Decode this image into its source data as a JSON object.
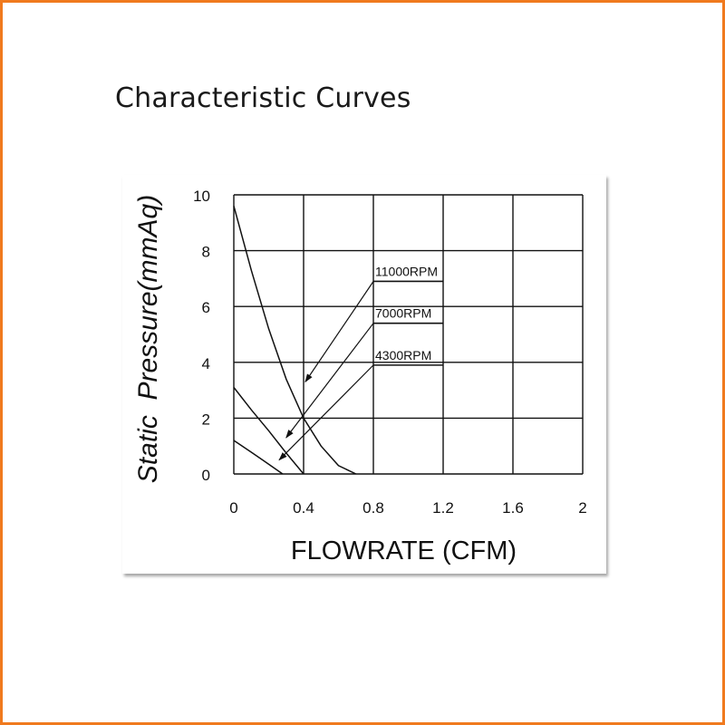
{
  "page": {
    "title": "Characteristic Curves",
    "border_color": "#f07a1e"
  },
  "chart_data": {
    "type": "line",
    "xlabel": "FLOWRATE (CFM)",
    "ylabel": "Static  Pressure(mmAq)",
    "xlim": [
      0,
      2
    ],
    "ylim": [
      0,
      10
    ],
    "x_ticks": [
      "0",
      "0.4",
      "0.8",
      "1.2",
      "1.6",
      "2"
    ],
    "y_ticks": [
      "0",
      "2",
      "4",
      "6",
      "8",
      "10"
    ],
    "grid": true,
    "series": [
      {
        "name": "11000RPM",
        "points": [
          [
            0,
            9.6
          ],
          [
            0.1,
            7.3
          ],
          [
            0.2,
            5.2
          ],
          [
            0.3,
            3.4
          ],
          [
            0.4,
            2.0
          ],
          [
            0.5,
            1.0
          ],
          [
            0.6,
            0.3
          ],
          [
            0.7,
            0
          ]
        ]
      },
      {
        "name": "7000RPM",
        "points": [
          [
            0,
            3.1
          ],
          [
            0.1,
            2.3
          ],
          [
            0.2,
            1.55
          ],
          [
            0.3,
            0.75
          ],
          [
            0.4,
            0
          ]
        ]
      },
      {
        "name": "4300RPM",
        "points": [
          [
            0,
            1.2
          ],
          [
            0.1,
            0.78
          ],
          [
            0.2,
            0.35
          ],
          [
            0.28,
            0
          ]
        ]
      }
    ],
    "annotations": [
      {
        "label": "11000RPM",
        "box_x": [
          0.8,
          1.2
        ],
        "box_y": 6.9,
        "pointer_to": [
          0.41,
          3.3
        ]
      },
      {
        "label": "7000RPM",
        "box_x": [
          0.8,
          1.2
        ],
        "box_y": 5.4,
        "pointer_to": [
          0.3,
          1.3
        ]
      },
      {
        "label": "4300RPM",
        "box_x": [
          0.8,
          1.2
        ],
        "box_y": 3.9,
        "pointer_to": [
          0.26,
          0.5
        ]
      }
    ]
  }
}
